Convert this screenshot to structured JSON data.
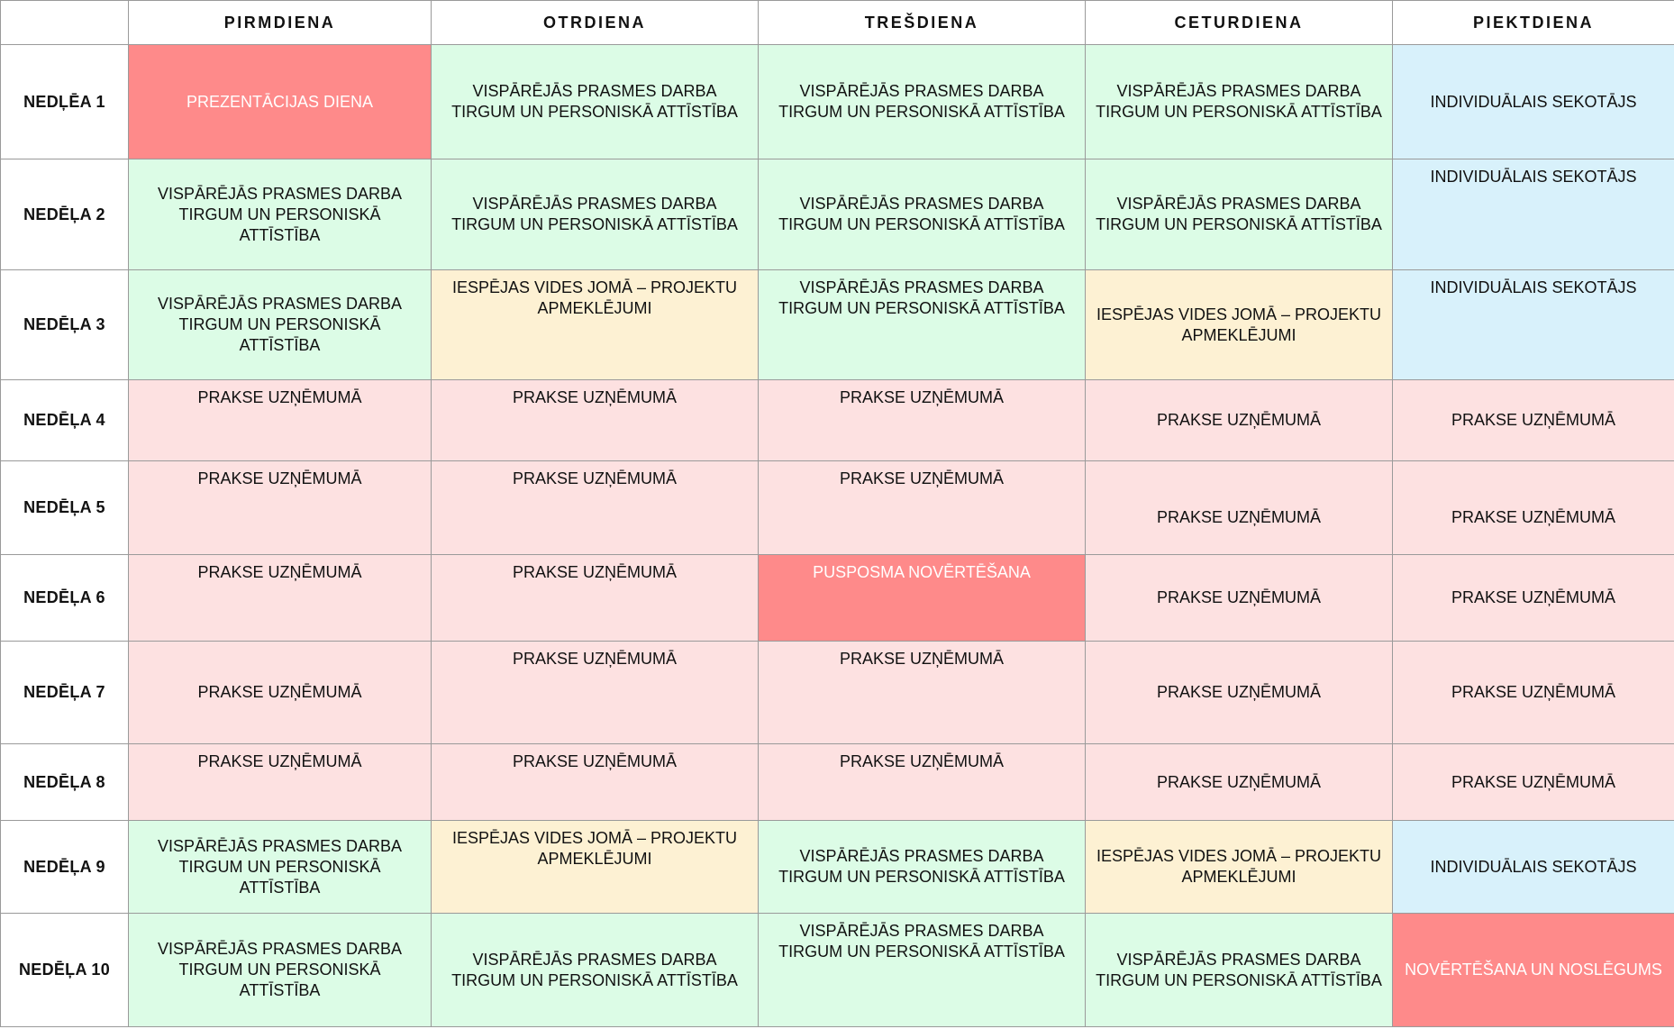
{
  "days": [
    "PIRMDIENA",
    "OTRDIENA",
    "TREŠDIENA",
    "CETURDIENA",
    "PIEKTDIENA"
  ],
  "legend_colors": {
    "green": "#dcfce6",
    "blue": "#d8f1fb",
    "yellow": "#fdf1d3",
    "pink": "#fde1e1",
    "red": "#fe8a8a"
  },
  "weeks": [
    {
      "label": "NEDĻĒA 1",
      "cells": [
        {
          "text": "PREZENTĀCIJAS DIENA",
          "color": "red"
        },
        {
          "text": "VISPĀRĒJĀS PRASMES DARBA TIRGUM UN PERSONISKĀ ATTĪSTĪBA",
          "color": "green"
        },
        {
          "text": "VISPĀRĒJĀS PRASMES DARBA TIRGUM UN PERSONISKĀ ATTĪSTĪBA",
          "color": "green"
        },
        {
          "text": "VISPĀRĒJĀS PRASMES DARBA TIRGUM UN PERSONISKĀ ATTĪSTĪBA",
          "color": "green"
        },
        {
          "text": "INDIVIDUĀLAIS SEKOTĀJS",
          "color": "blue"
        }
      ]
    },
    {
      "label": "NEDĒĻA 2",
      "cells": [
        {
          "text": "VISPĀRĒJĀS PRASMES DARBA TIRGUM UN PERSONISKĀ ATTĪSTĪBA",
          "color": "green"
        },
        {
          "text": "VISPĀRĒJĀS PRASMES DARBA TIRGUM UN PERSONISKĀ ATTĪSTĪBA",
          "color": "green"
        },
        {
          "text": "VISPĀRĒJĀS PRASMES DARBA TIRGUM UN PERSONISKĀ ATTĪSTĪBA",
          "color": "green"
        },
        {
          "text": "VISPĀRĒJĀS PRASMES DARBA TIRGUM UN PERSONISKĀ ATTĪSTĪBA",
          "color": "green"
        },
        {
          "text": "INDIVIDUĀLAIS SEKOTĀJS",
          "color": "blue"
        }
      ]
    },
    {
      "label": "NEDĒĻA 3",
      "cells": [
        {
          "text": "VISPĀRĒJĀS PRASMES DARBA TIRGUM UN PERSONISKĀ ATTĪSTĪBA",
          "color": "green"
        },
        {
          "text": "IESPĒJAS VIDES JOMĀ – PROJEKTU APMEKLĒJUMI",
          "color": "yellow"
        },
        {
          "text": "VISPĀRĒJĀS PRASMES DARBA TIRGUM UN PERSONISKĀ ATTĪSTĪBA",
          "color": "green"
        },
        {
          "text": "IESPĒJAS VIDES JOMĀ – PROJEKTU APMEKLĒJUMI",
          "color": "yellow"
        },
        {
          "text": "INDIVIDUĀLAIS SEKOTĀJS",
          "color": "blue"
        }
      ]
    },
    {
      "label": "NEDĒĻA 4",
      "cells": [
        {
          "text": "PRAKSE UZŅĒMUMĀ",
          "color": "pink"
        },
        {
          "text": "PRAKSE UZŅĒMUMĀ",
          "color": "pink"
        },
        {
          "text": "PRAKSE UZŅĒMUMĀ",
          "color": "pink"
        },
        {
          "text": "PRAKSE UZŅĒMUMĀ",
          "color": "pink"
        },
        {
          "text": "PRAKSE UZŅĒMUMĀ",
          "color": "pink"
        }
      ]
    },
    {
      "label": "NEDĒĻA 5",
      "cells": [
        {
          "text": "PRAKSE UZŅĒMUMĀ",
          "color": "pink"
        },
        {
          "text": "PRAKSE UZŅĒMUMĀ",
          "color": "pink"
        },
        {
          "text": "PRAKSE UZŅĒMUMĀ",
          "color": "pink"
        },
        {
          "text": "PRAKSE UZŅĒMUMĀ",
          "color": "pink"
        },
        {
          "text": "PRAKSE UZŅĒMUMĀ",
          "color": "pink"
        }
      ]
    },
    {
      "label": "NEDĒĻA 6",
      "cells": [
        {
          "text": "PRAKSE UZŅĒMUMĀ",
          "color": "pink"
        },
        {
          "text": "PRAKSE UZŅĒMUMĀ",
          "color": "pink"
        },
        {
          "text": "PUSPOSMA NOVĒRTĒŠANA",
          "color": "red"
        },
        {
          "text": "PRAKSE UZŅĒMUMĀ",
          "color": "pink"
        },
        {
          "text": "PRAKSE UZŅĒMUMĀ",
          "color": "pink"
        }
      ]
    },
    {
      "label": "NEDĒĻA 7",
      "cells": [
        {
          "text": "PRAKSE UZŅĒMUMĀ",
          "color": "pink"
        },
        {
          "text": "PRAKSE UZŅĒMUMĀ",
          "color": "pink"
        },
        {
          "text": "PRAKSE UZŅĒMUMĀ",
          "color": "pink"
        },
        {
          "text": "PRAKSE UZŅĒMUMĀ",
          "color": "pink"
        },
        {
          "text": "PRAKSE UZŅĒMUMĀ",
          "color": "pink"
        }
      ]
    },
    {
      "label": "NEDĒĻA 8",
      "cells": [
        {
          "text": "PRAKSE UZŅĒMUMĀ",
          "color": "pink"
        },
        {
          "text": "PRAKSE UZŅĒMUMĀ",
          "color": "pink"
        },
        {
          "text": "PRAKSE UZŅĒMUMĀ",
          "color": "pink"
        },
        {
          "text": "PRAKSE UZŅĒMUMĀ",
          "color": "pink"
        },
        {
          "text": "PRAKSE UZŅĒMUMĀ",
          "color": "pink"
        }
      ]
    },
    {
      "label": "NEDĒĻA 9",
      "cells": [
        {
          "text": "VISPĀRĒJĀS PRASMES DARBA TIRGUM UN PERSONISKĀ ATTĪSTĪBA",
          "color": "green"
        },
        {
          "text": "IESPĒJAS VIDES JOMĀ – PROJEKTU APMEKLĒJUMI",
          "color": "yellow"
        },
        {
          "text": "VISPĀRĒJĀS PRASMES DARBA TIRGUM UN PERSONISKĀ ATTĪSTĪBA",
          "color": "green"
        },
        {
          "text": "IESPĒJAS VIDES JOMĀ – PROJEKTU APMEKLĒJUMI",
          "color": "yellow"
        },
        {
          "text": "INDIVIDUĀLAIS SEKOTĀJS",
          "color": "blue"
        }
      ]
    },
    {
      "label": "NEDĒĻA 10",
      "cells": [
        {
          "text": "VISPĀRĒJĀS PRASMES DARBA TIRGUM UN PERSONISKĀ ATTĪSTĪBA",
          "color": "green"
        },
        {
          "text": "VISPĀRĒJĀS PRASMES DARBA TIRGUM UN PERSONISKĀ ATTĪSTĪBA",
          "color": "green"
        },
        {
          "text": "VISPĀRĒJĀS PRASMES DARBA TIRGUM UN PERSONISKĀ ATTĪSTĪBA",
          "color": "green"
        },
        {
          "text": "VISPĀRĒJĀS PRASMES DARBA TIRGUM UN PERSONISKĀ ATTĪSTĪBA",
          "color": "green"
        },
        {
          "text": "NOVĒRTĒŠANA UN NOSLĒGUMS",
          "color": "red"
        }
      ]
    }
  ]
}
